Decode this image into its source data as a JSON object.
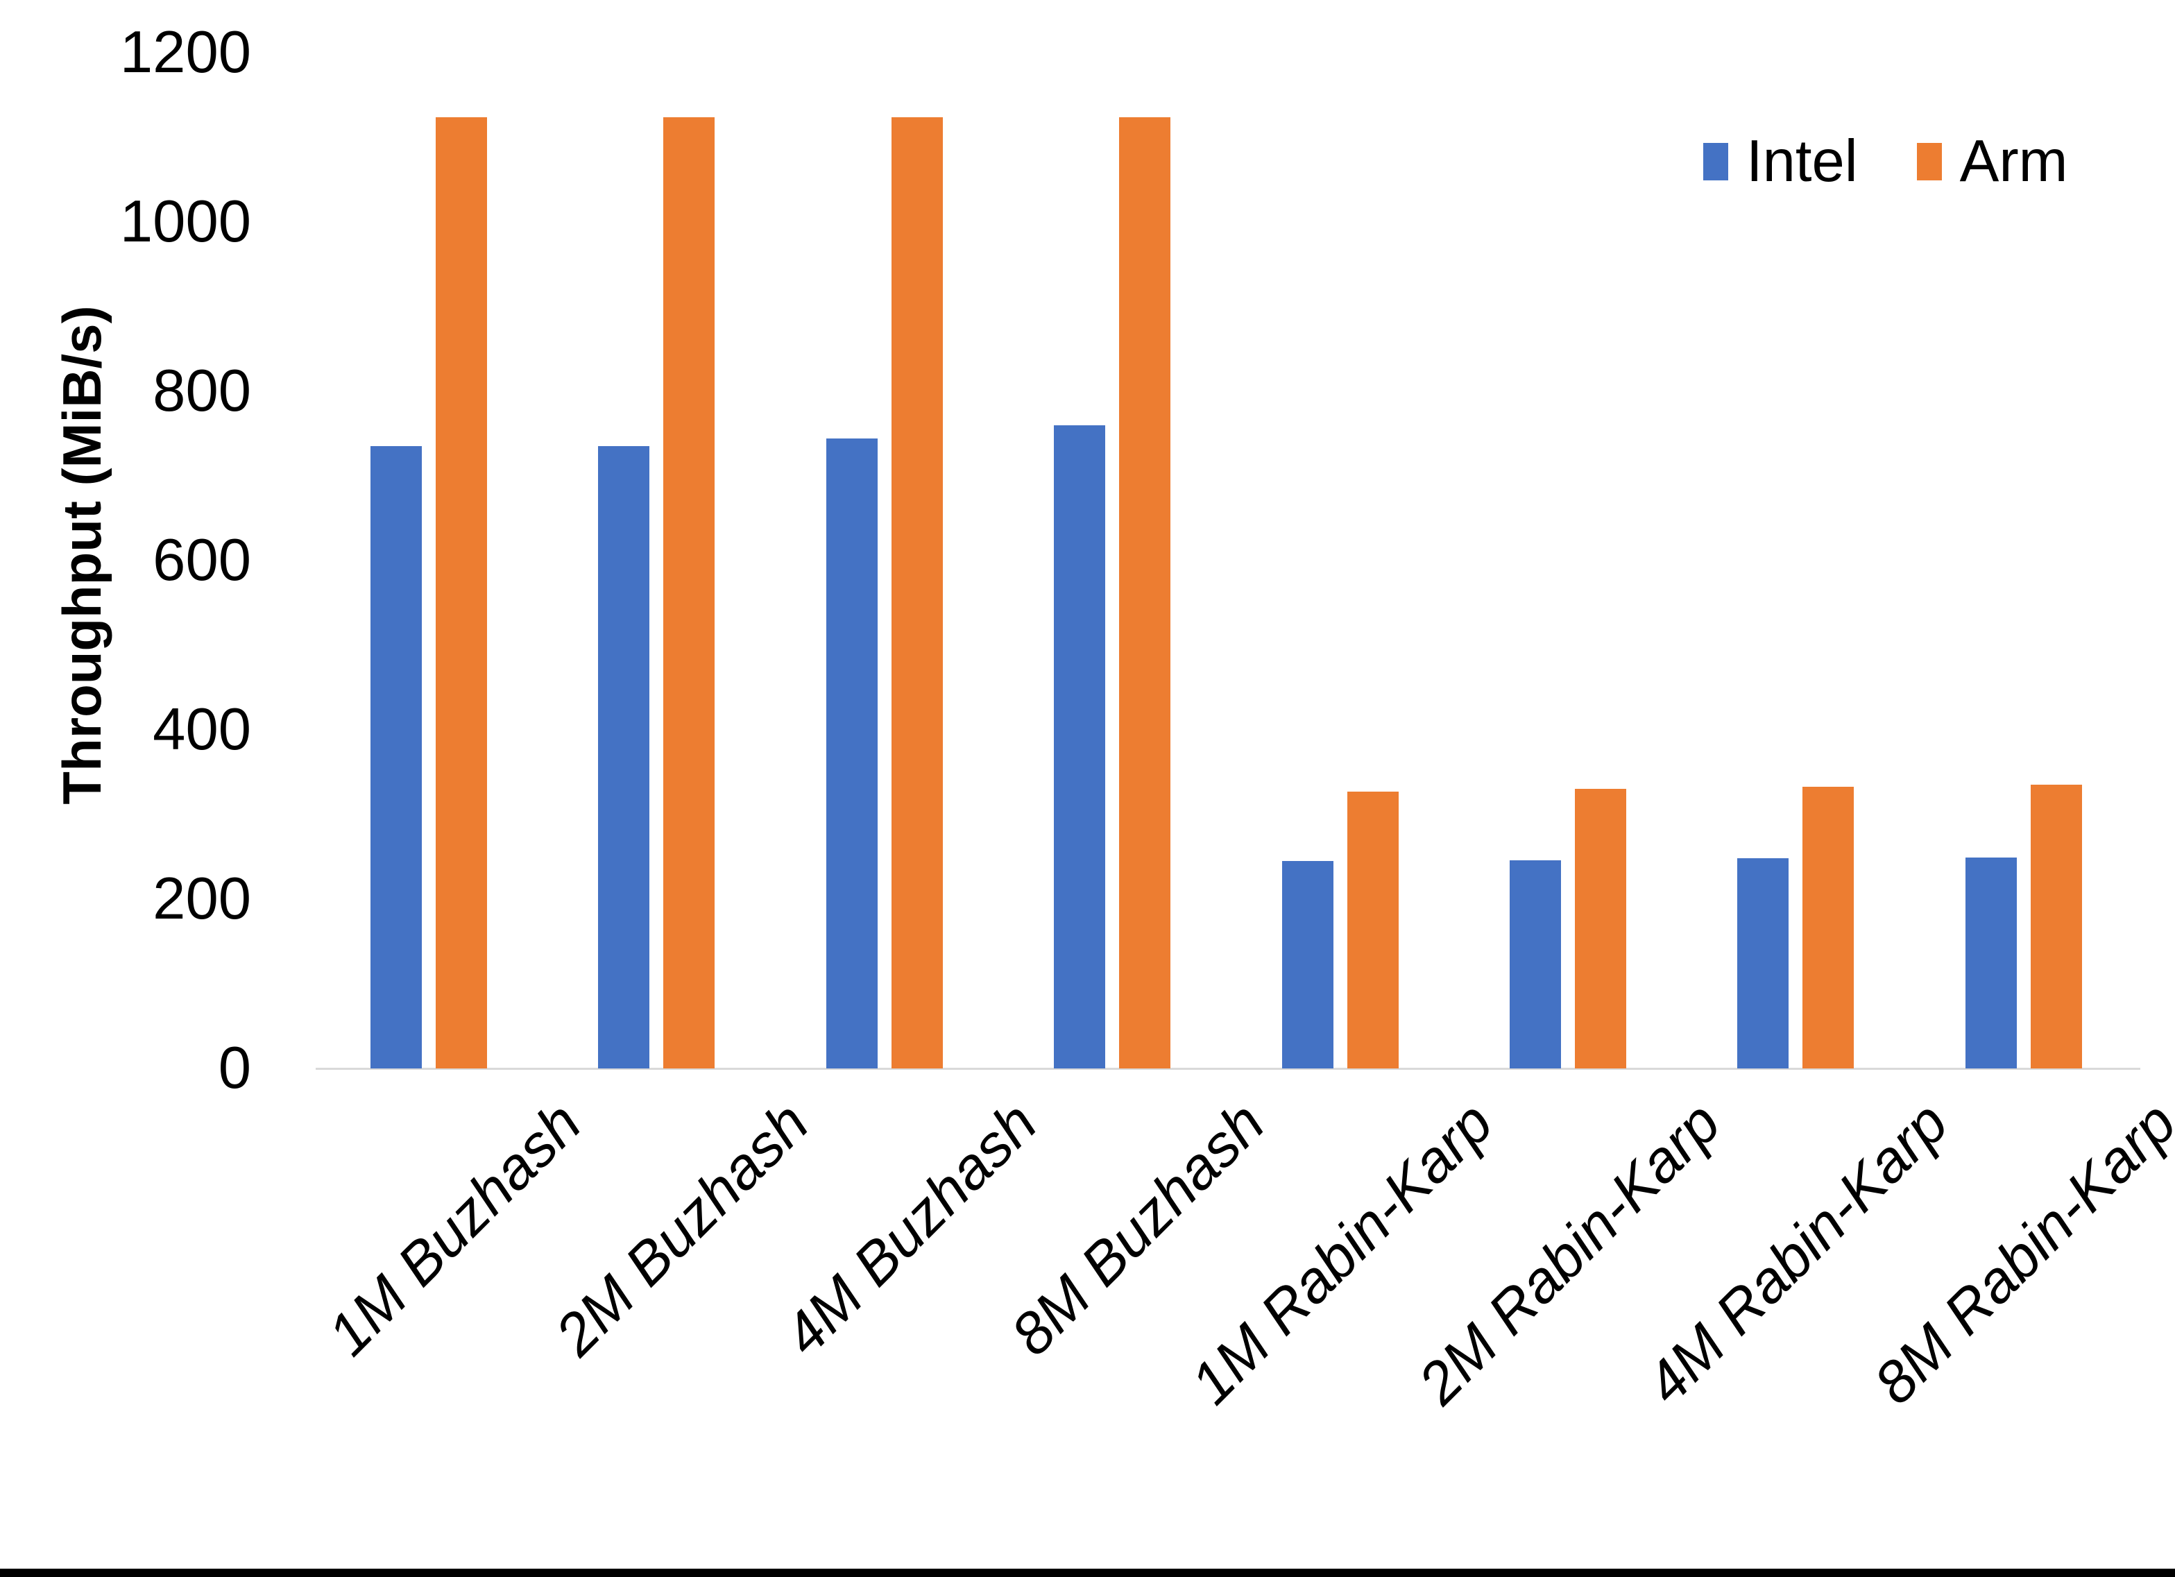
{
  "chart_data": {
    "type": "bar",
    "title": "",
    "xlabel": "",
    "ylabel": "Throughput (MiB/s)",
    "categories": [
      "1M Buzhash",
      "2M Buzhash",
      "4M Buzhash",
      "8M Buzhash",
      "1M Rabin-Karp",
      "2M Rabin-Karp",
      "4M Rabin-Karp",
      "8M Rabin-Karp"
    ],
    "series": [
      {
        "name": "Intel",
        "color": "#4472C4",
        "values": [
          735,
          735,
          744,
          760,
          245,
          246,
          248,
          249
        ]
      },
      {
        "name": "Arm",
        "color": "#ED7D31",
        "values": [
          1124,
          1124,
          1124,
          1124,
          327,
          330,
          333,
          335
        ]
      }
    ],
    "ylim": [
      0,
      1200
    ],
    "yticks": [
      0,
      200,
      400,
      600,
      800,
      1000,
      1200
    ],
    "grid": false,
    "legend_position": "top-right",
    "axis_line_color": "#D9D9D9",
    "text_color": "#000000",
    "background_color": "#FFFFFF"
  }
}
